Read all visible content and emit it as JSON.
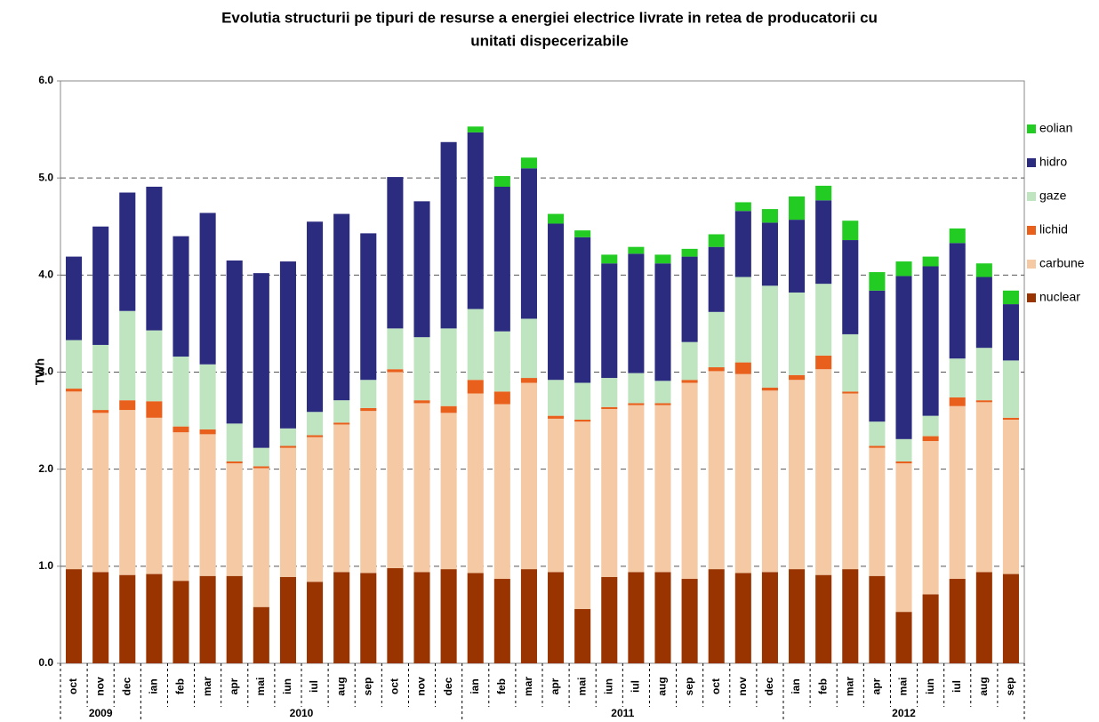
{
  "chart_data": {
    "type": "stacked-bar",
    "title": [
      "Evolutia structurii pe tipuri de resurse a energiei electrice livrate in retea de producatorii cu",
      "unitati dispecerizabile"
    ],
    "y_label": "TWh",
    "categories": [
      "oct",
      "nov",
      "dec",
      "ian",
      "feb",
      "mar",
      "apr",
      "mai",
      "iun",
      "iul",
      "aug",
      "sep",
      "oct",
      "nov",
      "dec",
      "ian",
      "feb",
      "mar",
      "apr",
      "mai",
      "iun",
      "iul",
      "aug",
      "sep",
      "oct",
      "nov",
      "dec",
      "ian",
      "feb",
      "mar",
      "apr",
      "mai",
      "iun",
      "iul",
      "aug",
      "sep"
    ],
    "year_labels": [
      "2009",
      null,
      null,
      "2010",
      null,
      null,
      null,
      null,
      null,
      null,
      null,
      null,
      null,
      null,
      null,
      "2011",
      null,
      null,
      null,
      null,
      null,
      null,
      null,
      null,
      null,
      null,
      null,
      "2012",
      null,
      null,
      null,
      null,
      null,
      null,
      null,
      null
    ],
    "series": [
      {
        "name": "nuclear",
        "color": "#993300",
        "values": [
          0.97,
          0.94,
          0.91,
          0.92,
          0.85,
          0.9,
          0.9,
          0.58,
          0.89,
          0.84,
          0.94,
          0.93,
          0.98,
          0.94,
          0.97,
          0.93,
          0.87,
          0.97,
          0.94,
          0.56,
          0.89,
          0.94,
          0.94,
          0.87,
          0.97,
          0.93,
          0.94,
          0.97,
          0.91,
          0.97,
          0.9,
          0.53,
          0.71,
          0.87,
          0.94,
          0.92
        ]
      },
      {
        "name": "carbune",
        "color": "#f4c9a4",
        "values": [
          1.83,
          1.64,
          1.7,
          1.61,
          1.53,
          1.46,
          1.16,
          1.43,
          1.33,
          1.49,
          1.52,
          1.67,
          2.02,
          1.74,
          1.61,
          1.85,
          1.8,
          1.92,
          1.58,
          1.93,
          1.73,
          1.72,
          1.72,
          2.02,
          2.04,
          2.05,
          1.87,
          1.95,
          2.12,
          1.81,
          1.32,
          1.53,
          1.58,
          1.78,
          1.75,
          1.59
        ]
      },
      {
        "name": "lichid",
        "color": "#e8601c",
        "values": [
          0.03,
          0.03,
          0.1,
          0.17,
          0.06,
          0.05,
          0.02,
          0.02,
          0.02,
          0.02,
          0.02,
          0.03,
          0.03,
          0.03,
          0.07,
          0.14,
          0.13,
          0.05,
          0.03,
          0.02,
          0.02,
          0.02,
          0.02,
          0.03,
          0.04,
          0.12,
          0.03,
          0.05,
          0.14,
          0.02,
          0.02,
          0.02,
          0.05,
          0.09,
          0.02,
          0.02
        ]
      },
      {
        "name": "gaze",
        "color": "#bfe4c0",
        "values": [
          0.5,
          0.67,
          0.92,
          0.73,
          0.72,
          0.67,
          0.39,
          0.19,
          0.18,
          0.24,
          0.23,
          0.29,
          0.42,
          0.65,
          0.8,
          0.73,
          0.62,
          0.61,
          0.37,
          0.38,
          0.3,
          0.31,
          0.23,
          0.39,
          0.57,
          0.88,
          1.05,
          0.85,
          0.74,
          0.59,
          0.25,
          0.23,
          0.21,
          0.4,
          0.54,
          0.59
        ]
      },
      {
        "name": "hidro",
        "color": "#2b2b80",
        "values": [
          0.86,
          1.22,
          1.22,
          1.48,
          1.24,
          1.56,
          1.68,
          1.8,
          1.72,
          1.96,
          1.92,
          1.51,
          1.56,
          1.4,
          1.92,
          1.82,
          1.49,
          1.55,
          1.61,
          1.5,
          1.18,
          1.23,
          1.21,
          0.88,
          0.67,
          0.68,
          0.65,
          0.75,
          0.86,
          0.97,
          1.35,
          1.68,
          1.54,
          1.19,
          0.73,
          0.58
        ]
      },
      {
        "name": "eolian",
        "color": "#22cc22",
        "values": [
          0,
          0,
          0,
          0,
          0,
          0,
          0,
          0,
          0,
          0,
          0,
          0,
          0,
          0,
          0,
          0.06,
          0.11,
          0.11,
          0.1,
          0.07,
          0.09,
          0.07,
          0.09,
          0.08,
          0.13,
          0.09,
          0.14,
          0.24,
          0.15,
          0.2,
          0.19,
          0.15,
          0.1,
          0.15,
          0.14,
          0.14
        ]
      }
    ],
    "ylim": [
      0,
      6
    ],
    "yticks": [
      {
        "value": 0,
        "label": "0.0"
      },
      {
        "value": 1,
        "label": "1.0"
      },
      {
        "value": 2,
        "label": "2.0"
      },
      {
        "value": 3,
        "label": "3.0"
      },
      {
        "value": 4,
        "label": "4.0"
      },
      {
        "value": 5,
        "label": "5.0"
      },
      {
        "value": 6,
        "label": "6.0"
      }
    ],
    "grid": true
  }
}
